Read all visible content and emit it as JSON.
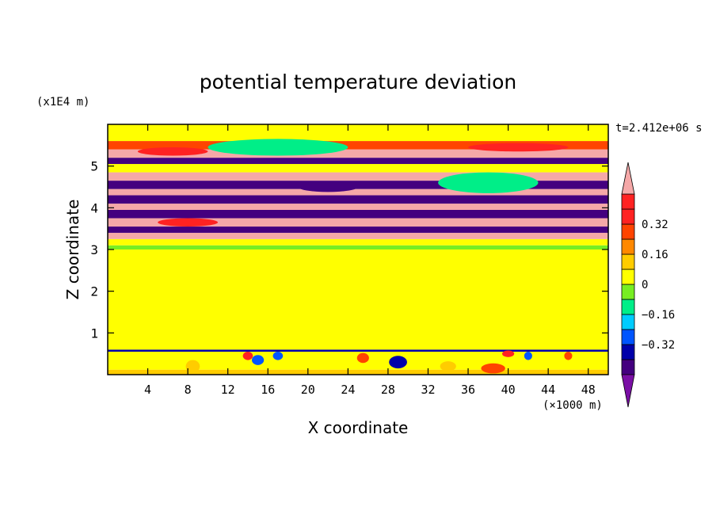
{
  "chart_data": {
    "type": "heatmap",
    "title": "potential temperature deviation",
    "xlabel": "X coordinate",
    "ylabel": "Z coordinate",
    "x_unit": "(×1000 m)",
    "y_unit": "(x1E4 m)",
    "time_label": "t=2.412e+06 s",
    "xlim": [
      0,
      50
    ],
    "ylim": [
      0,
      6
    ],
    "x_ticks": [
      4,
      8,
      12,
      16,
      20,
      24,
      28,
      32,
      36,
      40,
      44,
      48
    ],
    "y_ticks": [
      1,
      2,
      3,
      4,
      5
    ],
    "colorbar": {
      "levels": [
        -0.48,
        -0.4,
        -0.32,
        -0.24,
        -0.16,
        -0.08,
        0,
        0.08,
        0.16,
        0.24,
        0.32,
        0.4,
        0.48
      ],
      "tick_labels": [
        "0.32",
        "0.16",
        "0",
        "−0.16",
        "−0.32"
      ],
      "tick_values": [
        0.32,
        0.16,
        0,
        -0.16,
        -0.32
      ],
      "colors": [
        "#7a0fa5",
        "#44007f",
        "#0000aa",
        "#0055ff",
        "#00ccff",
        "#00ee88",
        "#77ee22",
        "#ffff00",
        "#ffcc00",
        "#ff8800",
        "#ff4400",
        "#ff2222",
        "#ff2222",
        "#f5a8a8"
      ],
      "extend": "both"
    },
    "bands": [
      {
        "z": [
          0.0,
          0.12
        ],
        "value": 0.08
      },
      {
        "z": [
          0.12,
          0.55
        ],
        "value": 0.02
      },
      {
        "z": [
          0.55,
          0.6
        ],
        "value": -0.35
      },
      {
        "z": [
          0.6,
          3.0
        ],
        "value": 0.02
      },
      {
        "z": [
          3.0,
          3.1
        ],
        "value": -0.05
      },
      {
        "z": [
          3.1,
          3.25
        ],
        "value": 0.05
      },
      {
        "z": [
          3.25,
          3.4
        ],
        "value": 0.5
      },
      {
        "z": [
          3.4,
          3.55
        ],
        "value": -0.45
      },
      {
        "z": [
          3.55,
          3.75
        ],
        "value": 0.5
      },
      {
        "z": [
          3.75,
          3.95
        ],
        "value": -0.45
      },
      {
        "z": [
          3.95,
          4.1
        ],
        "value": 0.5
      },
      {
        "z": [
          4.1,
          4.3
        ],
        "value": -0.45
      },
      {
        "z": [
          4.3,
          4.45
        ],
        "value": 0.5
      },
      {
        "z": [
          4.45,
          4.65
        ],
        "value": -0.45
      },
      {
        "z": [
          4.65,
          4.85
        ],
        "value": 0.5
      },
      {
        "z": [
          4.85,
          5.05
        ],
        "value": 0.05
      },
      {
        "z": [
          5.05,
          5.2
        ],
        "value": -0.45
      },
      {
        "z": [
          5.2,
          5.4
        ],
        "value": 0.5
      },
      {
        "z": [
          5.4,
          5.6
        ],
        "value": 0.3
      },
      {
        "z": [
          5.6,
          6.0
        ],
        "value": 0.02
      }
    ],
    "features": [
      {
        "x": 6.5,
        "z": 5.35,
        "rx": 3.5,
        "rz": 0.1,
        "value": 0.35
      },
      {
        "x": 17,
        "z": 5.45,
        "rx": 5,
        "rz": 0.12,
        "value": -0.45
      },
      {
        "x": 17,
        "z": 5.45,
        "rx": 7,
        "rz": 0.2,
        "value": -0.12
      },
      {
        "x": 41,
        "z": 5.45,
        "rx": 5,
        "rz": 0.1,
        "value": 0.35
      },
      {
        "x": 22,
        "z": 4.5,
        "rx": 3,
        "rz": 0.12,
        "value": -0.45
      },
      {
        "x": 38,
        "z": 4.6,
        "rx": 3.5,
        "rz": 0.15,
        "value": -0.45
      },
      {
        "x": 38,
        "z": 4.6,
        "rx": 5,
        "rz": 0.25,
        "value": -0.12
      },
      {
        "x": 8,
        "z": 3.65,
        "rx": 3,
        "rz": 0.1,
        "value": 0.35
      },
      {
        "x": 14,
        "z": 0.45,
        "rx": 0.5,
        "rz": 0.1,
        "value": 0.35
      },
      {
        "x": 15,
        "z": 0.35,
        "rx": 0.6,
        "rz": 0.12,
        "value": -0.3
      },
      {
        "x": 17,
        "z": 0.45,
        "rx": 0.5,
        "rz": 0.1,
        "value": -0.25
      },
      {
        "x": 25.5,
        "z": 0.4,
        "rx": 0.6,
        "rz": 0.12,
        "value": 0.25
      },
      {
        "x": 29,
        "z": 0.3,
        "rx": 0.9,
        "rz": 0.15,
        "value": -0.4
      },
      {
        "x": 38.5,
        "z": 0.15,
        "rx": 1.2,
        "rz": 0.12,
        "value": 0.3
      },
      {
        "x": 40,
        "z": 0.5,
        "rx": 0.6,
        "rz": 0.08,
        "value": 0.35
      },
      {
        "x": 42,
        "z": 0.45,
        "rx": 0.4,
        "rz": 0.1,
        "value": -0.25
      },
      {
        "x": 46,
        "z": 0.45,
        "rx": 0.4,
        "rz": 0.1,
        "value": 0.3
      },
      {
        "x": 8.5,
        "z": 0.2,
        "rx": 0.7,
        "rz": 0.15,
        "value": 0.15
      },
      {
        "x": 34,
        "z": 0.2,
        "rx": 0.8,
        "rz": 0.12,
        "value": 0.12
      }
    ]
  }
}
